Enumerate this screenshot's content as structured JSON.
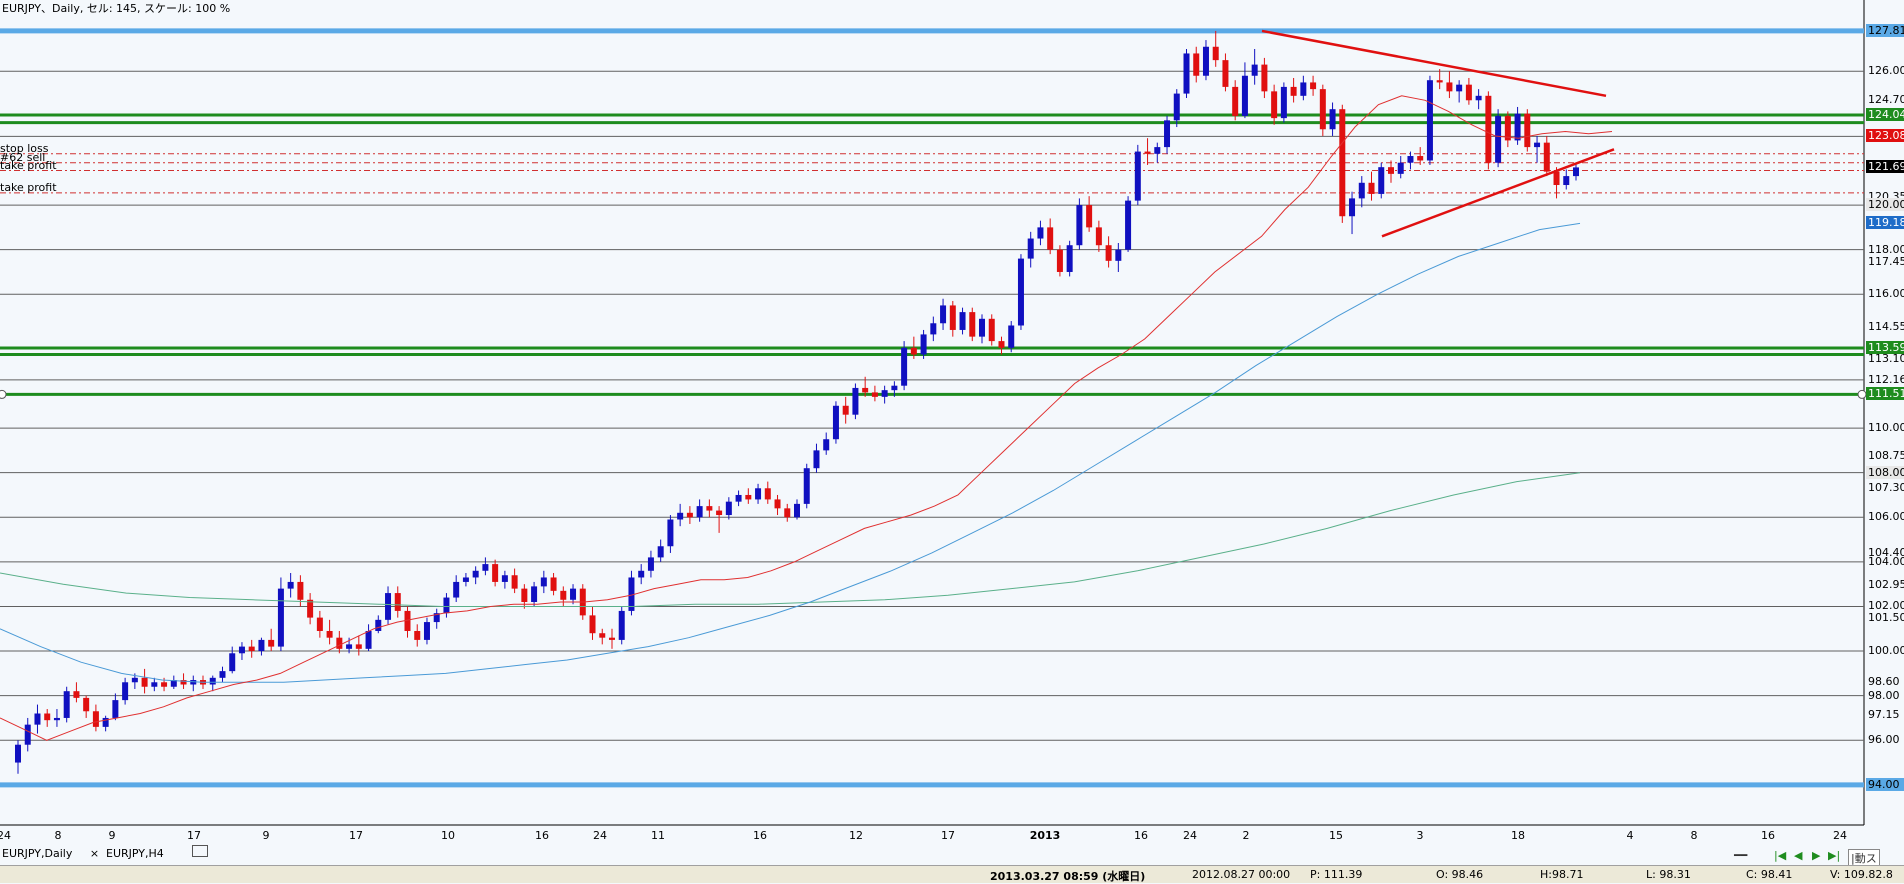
{
  "window": {
    "title": "EURJPY、Daily, セル: 145, スケール: 100 %"
  },
  "order_labels": [
    {
      "text": "stop loss",
      "price": 122.3
    },
    {
      "text": "#62 sell",
      "price": 121.9
    },
    {
      "text": "take profit",
      "price": 121.55
    },
    {
      "text": "take profit",
      "price": 120.55
    }
  ],
  "price_scale": {
    "labels": [
      "127.81",
      "126.00",
      "124.70",
      "124.04",
      "123.08",
      "121.69",
      "120.35",
      "120.00",
      "119.18",
      "118.00",
      "117.45",
      "116.00",
      "114.55",
      "113.59",
      "113.10",
      "112.16",
      "111.51",
      "110.00",
      "108.75",
      "108.00",
      "107.30",
      "106.00",
      "104.40",
      "104.00",
      "102.95",
      "102.00",
      "101.50",
      "100.00",
      "98.60",
      "98.00",
      "97.15",
      "96.00",
      "94.00"
    ],
    "tags": [
      {
        "text": "127.81",
        "bg": "#5aa9e6",
        "fg": "#000000"
      },
      {
        "text": "124.04",
        "bg": "#1e8c1e",
        "fg": "#ffffff"
      },
      {
        "text": "123.08",
        "bg": "#e01010",
        "fg": "#ffffff"
      },
      {
        "text": "121.69",
        "bg": "#000000",
        "fg": "#ffffff"
      },
      {
        "text": "120.00",
        "bg": "#e8e8e8",
        "fg": "#000000"
      },
      {
        "text": "119.18",
        "bg": "#1e6cc8",
        "fg": "#ffffff"
      },
      {
        "text": "113.59",
        "bg": "#1e8c1e",
        "fg": "#ffffff"
      },
      {
        "text": "111.51",
        "bg": "#1e8c1e",
        "fg": "#ffffff"
      },
      {
        "text": "108.00",
        "bg": "#e8e8e8",
        "fg": "#000000"
      },
      {
        "text": "94.00",
        "bg": "#5aa9e6",
        "fg": "#000000"
      }
    ]
  },
  "date_axis": [
    "24",
    "8",
    "9",
    "17",
    "9",
    "17",
    "10",
    "16",
    "24",
    "11",
    "16",
    "12",
    "17",
    "2013",
    "16",
    "24",
    "2",
    "15",
    "3",
    "18",
    "4",
    "8",
    "16",
    "24"
  ],
  "tabs": [
    {
      "label": "EURJPY,Daily",
      "active": true,
      "close": "×"
    },
    {
      "label": "EURJPY,H4",
      "active": false
    }
  ],
  "status_bar": {
    "datetime": "2013.03.27 08:59 (水曜日)",
    "bar_time": "2012.08.27 00:00",
    "p": "P: 111.39",
    "o": "O: 98.46",
    "h": "H:98.71",
    "l": "L: 98.31",
    "c": "C: 98.41",
    "v": "V: 109.82.8"
  },
  "colors": {
    "background": "#f4f8fc",
    "bull_candle": "#1010c0",
    "bear_candle": "#e01010",
    "horizontal_line": "#606060",
    "support_green": "#1e8c1e",
    "boundary_blue": "#5aa9e6",
    "ma_fast": "#e03030",
    "ma_mid": "#4a9ad6",
    "ma_slow": "#5ab08a"
  },
  "chart_data": {
    "type": "candlestick",
    "symbol": "EURJPY",
    "timeframe": "Daily",
    "ylim": [
      93.5,
      128.3
    ],
    "candles": [
      [
        95.0,
        96.0,
        94.5,
        95.8
      ],
      [
        95.8,
        97.0,
        95.5,
        96.7
      ],
      [
        96.7,
        97.6,
        96.3,
        97.2
      ],
      [
        97.2,
        97.4,
        96.6,
        96.9
      ],
      [
        96.9,
        97.4,
        96.6,
        97.0
      ],
      [
        97.0,
        98.4,
        96.8,
        98.2
      ],
      [
        98.2,
        98.6,
        97.7,
        97.9
      ],
      [
        97.9,
        98.0,
        97.0,
        97.3
      ],
      [
        97.3,
        97.6,
        96.4,
        96.6
      ],
      [
        96.6,
        97.1,
        96.4,
        97.0
      ],
      [
        97.0,
        98.1,
        96.9,
        97.8
      ],
      [
        97.8,
        98.8,
        97.6,
        98.6
      ],
      [
        98.6,
        99.0,
        98.3,
        98.8
      ],
      [
        98.8,
        99.2,
        98.1,
        98.4
      ],
      [
        98.4,
        98.8,
        98.2,
        98.6
      ],
      [
        98.6,
        98.8,
        98.2,
        98.4
      ],
      [
        98.4,
        98.9,
        98.3,
        98.7
      ],
      [
        98.7,
        99.0,
        98.3,
        98.5
      ],
      [
        98.5,
        98.9,
        98.2,
        98.7
      ],
      [
        98.7,
        98.9,
        98.3,
        98.5
      ],
      [
        98.5,
        98.9,
        98.2,
        98.8
      ],
      [
        98.8,
        99.3,
        98.6,
        99.1
      ],
      [
        99.1,
        100.2,
        99.0,
        99.9
      ],
      [
        99.9,
        100.4,
        99.6,
        100.2
      ],
      [
        100.2,
        100.5,
        99.7,
        100.0
      ],
      [
        100.0,
        100.6,
        99.8,
        100.5
      ],
      [
        100.5,
        101.0,
        100.0,
        100.2
      ],
      [
        100.2,
        103.3,
        100.0,
        102.8
      ],
      [
        102.8,
        103.5,
        102.4,
        103.1
      ],
      [
        103.1,
        103.4,
        102.0,
        102.3
      ],
      [
        102.3,
        102.6,
        101.2,
        101.5
      ],
      [
        101.5,
        101.8,
        100.6,
        100.9
      ],
      [
        100.9,
        101.4,
        100.3,
        100.6
      ],
      [
        100.6,
        100.9,
        99.9,
        100.1
      ],
      [
        100.1,
        100.6,
        99.9,
        100.3
      ],
      [
        100.3,
        100.7,
        99.8,
        100.1
      ],
      [
        100.1,
        101.2,
        100.0,
        100.9
      ],
      [
        100.9,
        101.6,
        100.8,
        101.4
      ],
      [
        101.4,
        102.9,
        101.2,
        102.6
      ],
      [
        102.6,
        102.9,
        101.5,
        101.8
      ],
      [
        101.8,
        102.0,
        100.6,
        100.9
      ],
      [
        100.9,
        101.2,
        100.2,
        100.5
      ],
      [
        100.5,
        101.5,
        100.3,
        101.3
      ],
      [
        101.3,
        101.9,
        101.0,
        101.7
      ],
      [
        101.7,
        102.6,
        101.5,
        102.4
      ],
      [
        102.4,
        103.4,
        102.2,
        103.1
      ],
      [
        103.1,
        103.5,
        102.9,
        103.3
      ],
      [
        103.3,
        103.8,
        103.0,
        103.6
      ],
      [
        103.6,
        104.2,
        103.4,
        103.9
      ],
      [
        103.9,
        104.1,
        102.9,
        103.1
      ],
      [
        103.1,
        103.6,
        102.8,
        103.4
      ],
      [
        103.4,
        103.7,
        102.6,
        102.8
      ],
      [
        102.8,
        103.0,
        101.9,
        102.2
      ],
      [
        102.2,
        103.1,
        102.0,
        102.9
      ],
      [
        102.9,
        103.6,
        102.6,
        103.3
      ],
      [
        103.3,
        103.5,
        102.5,
        102.7
      ],
      [
        102.7,
        102.9,
        102.0,
        102.3
      ],
      [
        102.3,
        103.0,
        102.1,
        102.8
      ],
      [
        102.8,
        103.0,
        101.4,
        101.6
      ],
      [
        101.6,
        102.0,
        100.5,
        100.8
      ],
      [
        100.8,
        101.0,
        100.3,
        100.6
      ],
      [
        100.6,
        101.0,
        100.1,
        100.5
      ],
      [
        100.5,
        102.0,
        100.3,
        101.8
      ],
      [
        101.8,
        103.6,
        101.6,
        103.3
      ],
      [
        103.3,
        103.9,
        103.0,
        103.6
      ],
      [
        103.6,
        104.5,
        103.3,
        104.2
      ],
      [
        104.2,
        105.0,
        104.0,
        104.7
      ],
      [
        104.7,
        106.1,
        104.4,
        105.9
      ],
      [
        105.9,
        106.6,
        105.6,
        106.2
      ],
      [
        106.2,
        106.5,
        105.7,
        106.0
      ],
      [
        106.0,
        106.8,
        105.8,
        106.5
      ],
      [
        106.5,
        106.8,
        106.0,
        106.3
      ],
      [
        106.3,
        106.5,
        105.3,
        106.1
      ],
      [
        106.1,
        106.9,
        105.9,
        106.7
      ],
      [
        106.7,
        107.2,
        106.5,
        107.0
      ],
      [
        107.0,
        107.3,
        106.6,
        106.8
      ],
      [
        106.8,
        107.5,
        106.6,
        107.3
      ],
      [
        107.3,
        107.6,
        106.6,
        106.8
      ],
      [
        106.8,
        107.0,
        106.1,
        106.4
      ],
      [
        106.4,
        106.6,
        105.8,
        106.0
      ],
      [
        106.0,
        106.8,
        105.9,
        106.6
      ],
      [
        106.6,
        108.4,
        106.4,
        108.2
      ],
      [
        108.2,
        109.3,
        108.0,
        109.0
      ],
      [
        109.0,
        109.8,
        108.8,
        109.5
      ],
      [
        109.5,
        111.2,
        109.3,
        111.0
      ],
      [
        111.0,
        111.4,
        110.2,
        110.6
      ],
      [
        110.6,
        112.0,
        110.4,
        111.8
      ],
      [
        111.8,
        112.3,
        111.4,
        111.6
      ],
      [
        111.6,
        111.9,
        111.2,
        111.4
      ],
      [
        111.4,
        111.9,
        111.1,
        111.7
      ],
      [
        111.7,
        112.1,
        111.4,
        111.9
      ],
      [
        111.9,
        113.9,
        111.7,
        113.6
      ],
      [
        113.6,
        114.1,
        113.1,
        113.3
      ],
      [
        113.3,
        114.4,
        113.1,
        114.2
      ],
      [
        114.2,
        115.0,
        113.9,
        114.7
      ],
      [
        114.7,
        115.8,
        114.4,
        115.5
      ],
      [
        115.5,
        115.7,
        114.1,
        114.4
      ],
      [
        114.4,
        115.4,
        114.2,
        115.2
      ],
      [
        115.2,
        115.4,
        113.9,
        114.1
      ],
      [
        114.1,
        115.1,
        113.8,
        114.9
      ],
      [
        114.9,
        115.1,
        113.7,
        113.9
      ],
      [
        113.9,
        114.1,
        113.3,
        113.6
      ],
      [
        113.6,
        114.8,
        113.4,
        114.6
      ],
      [
        114.6,
        117.8,
        114.4,
        117.6
      ],
      [
        117.6,
        118.8,
        117.2,
        118.5
      ],
      [
        118.5,
        119.3,
        118.2,
        119.0
      ],
      [
        119.0,
        119.4,
        117.8,
        118.0
      ],
      [
        118.0,
        118.2,
        116.8,
        117.0
      ],
      [
        117.0,
        118.4,
        116.8,
        118.2
      ],
      [
        118.2,
        120.3,
        118.0,
        120.0
      ],
      [
        120.0,
        120.4,
        118.8,
        119.0
      ],
      [
        119.0,
        119.3,
        117.9,
        118.2
      ],
      [
        118.2,
        118.6,
        117.2,
        117.5
      ],
      [
        117.5,
        118.3,
        117.0,
        118.0
      ],
      [
        118.0,
        120.4,
        117.9,
        120.2
      ],
      [
        120.2,
        122.7,
        120.0,
        122.4
      ],
      [
        122.4,
        123.0,
        121.8,
        122.3
      ],
      [
        122.3,
        122.8,
        121.9,
        122.6
      ],
      [
        122.6,
        124.0,
        122.3,
        123.8
      ],
      [
        123.8,
        125.2,
        123.5,
        125.0
      ],
      [
        125.0,
        127.0,
        124.8,
        126.8
      ],
      [
        126.8,
        127.1,
        125.5,
        125.8
      ],
      [
        125.8,
        127.4,
        125.6,
        127.1
      ],
      [
        127.1,
        127.81,
        126.2,
        126.5
      ],
      [
        126.5,
        126.8,
        125.1,
        125.3
      ],
      [
        125.3,
        125.6,
        123.8,
        124.0
      ],
      [
        124.0,
        126.4,
        123.9,
        125.8
      ],
      [
        125.8,
        127.0,
        125.4,
        126.3
      ],
      [
        126.3,
        126.6,
        124.8,
        125.1
      ],
      [
        125.1,
        125.4,
        123.6,
        123.9
      ],
      [
        123.9,
        125.5,
        123.7,
        125.3
      ],
      [
        125.3,
        125.7,
        124.6,
        124.9
      ],
      [
        124.9,
        125.8,
        124.7,
        125.5
      ],
      [
        125.5,
        125.8,
        124.9,
        125.2
      ],
      [
        125.2,
        125.4,
        123.1,
        123.4
      ],
      [
        123.4,
        124.6,
        123.1,
        124.3
      ],
      [
        124.3,
        124.5,
        119.2,
        119.5
      ],
      [
        119.5,
        120.6,
        118.7,
        120.3
      ],
      [
        120.3,
        121.3,
        119.9,
        121.0
      ],
      [
        121.0,
        121.5,
        120.2,
        120.5
      ],
      [
        120.5,
        121.9,
        120.3,
        121.7
      ],
      [
        121.7,
        122.0,
        121.0,
        121.4
      ],
      [
        121.4,
        122.2,
        121.2,
        121.9
      ],
      [
        121.9,
        122.4,
        121.6,
        122.2
      ],
      [
        122.2,
        122.6,
        121.8,
        122.0
      ],
      [
        122.0,
        125.8,
        121.8,
        125.6
      ],
      [
        125.6,
        126.1,
        125.2,
        125.5
      ],
      [
        125.5,
        126.0,
        124.8,
        125.1
      ],
      [
        125.1,
        125.6,
        124.6,
        125.4
      ],
      [
        125.4,
        125.7,
        124.5,
        124.7
      ],
      [
        124.7,
        125.2,
        124.3,
        124.9
      ],
      [
        124.9,
        125.1,
        121.6,
        121.9
      ],
      [
        121.9,
        124.3,
        121.7,
        124.0
      ],
      [
        124.0,
        124.2,
        122.6,
        122.9
      ],
      [
        122.9,
        124.4,
        122.7,
        124.1
      ],
      [
        124.1,
        124.3,
        122.4,
        122.6
      ],
      [
        122.6,
        123.1,
        121.9,
        122.8
      ],
      [
        122.8,
        123.1,
        121.3,
        121.5
      ],
      [
        121.5,
        121.7,
        120.3,
        120.9
      ],
      [
        120.9,
        121.6,
        120.7,
        121.3
      ],
      [
        121.3,
        121.9,
        121.1,
        121.69
      ]
    ],
    "horizontal_levels": [
      127.81,
      126.0,
      124.04,
      123.7,
      123.08,
      120.0,
      118.0,
      116.0,
      113.59,
      113.3,
      112.16,
      111.51,
      110.0,
      108.0,
      106.0,
      104.0,
      102.0,
      100.0,
      98.0,
      96.0,
      94.0
    ],
    "order_lines": [
      122.3,
      121.9,
      121.55,
      120.55
    ],
    "ma_fast": [
      97.0,
      96.5,
      96.0,
      96.4,
      96.8,
      97.0,
      97.2,
      97.5,
      97.9,
      98.2,
      98.5,
      98.7,
      99.0,
      99.5,
      100.0,
      100.5,
      101.0,
      101.3,
      101.5,
      101.7,
      101.8,
      102.0,
      102.1,
      102.1,
      102.2,
      102.2,
      102.3,
      102.5,
      102.8,
      103.0,
      103.2,
      103.2,
      103.3,
      103.6,
      104.0,
      104.5,
      105.0,
      105.5,
      105.8,
      106.1,
      106.5,
      107.0,
      108.0,
      109.0,
      110.0,
      111.0,
      112.0,
      112.7,
      113.3,
      114.0,
      115.0,
      116.0,
      117.0,
      117.8,
      118.6,
      119.8,
      120.8,
      122.2,
      123.5,
      124.5,
      124.9,
      124.7,
      124.2,
      123.6,
      123.1,
      123.0,
      123.2,
      123.3,
      123.2,
      123.3
    ],
    "ma_mid": [
      101.0,
      100.2,
      99.5,
      99.0,
      98.7,
      98.6,
      98.6,
      98.6,
      98.7,
      98.8,
      98.9,
      99.0,
      99.2,
      99.4,
      99.6,
      99.9,
      100.2,
      100.6,
      101.1,
      101.6,
      102.2,
      102.9,
      103.6,
      104.4,
      105.3,
      106.2,
      107.2,
      108.3,
      109.4,
      110.5,
      111.6,
      112.8,
      113.9,
      115.0,
      116.0,
      116.9,
      117.7,
      118.3,
      118.9,
      119.18
    ],
    "ma_slow": [
      103.5,
      103.0,
      102.6,
      102.4,
      102.3,
      102.2,
      102.1,
      102.0,
      102.0,
      102.0,
      102.0,
      102.1,
      102.1,
      102.2,
      102.3,
      102.5,
      102.8,
      103.1,
      103.6,
      104.2,
      104.8,
      105.5,
      106.3,
      107.0,
      107.6,
      108.0
    ]
  }
}
